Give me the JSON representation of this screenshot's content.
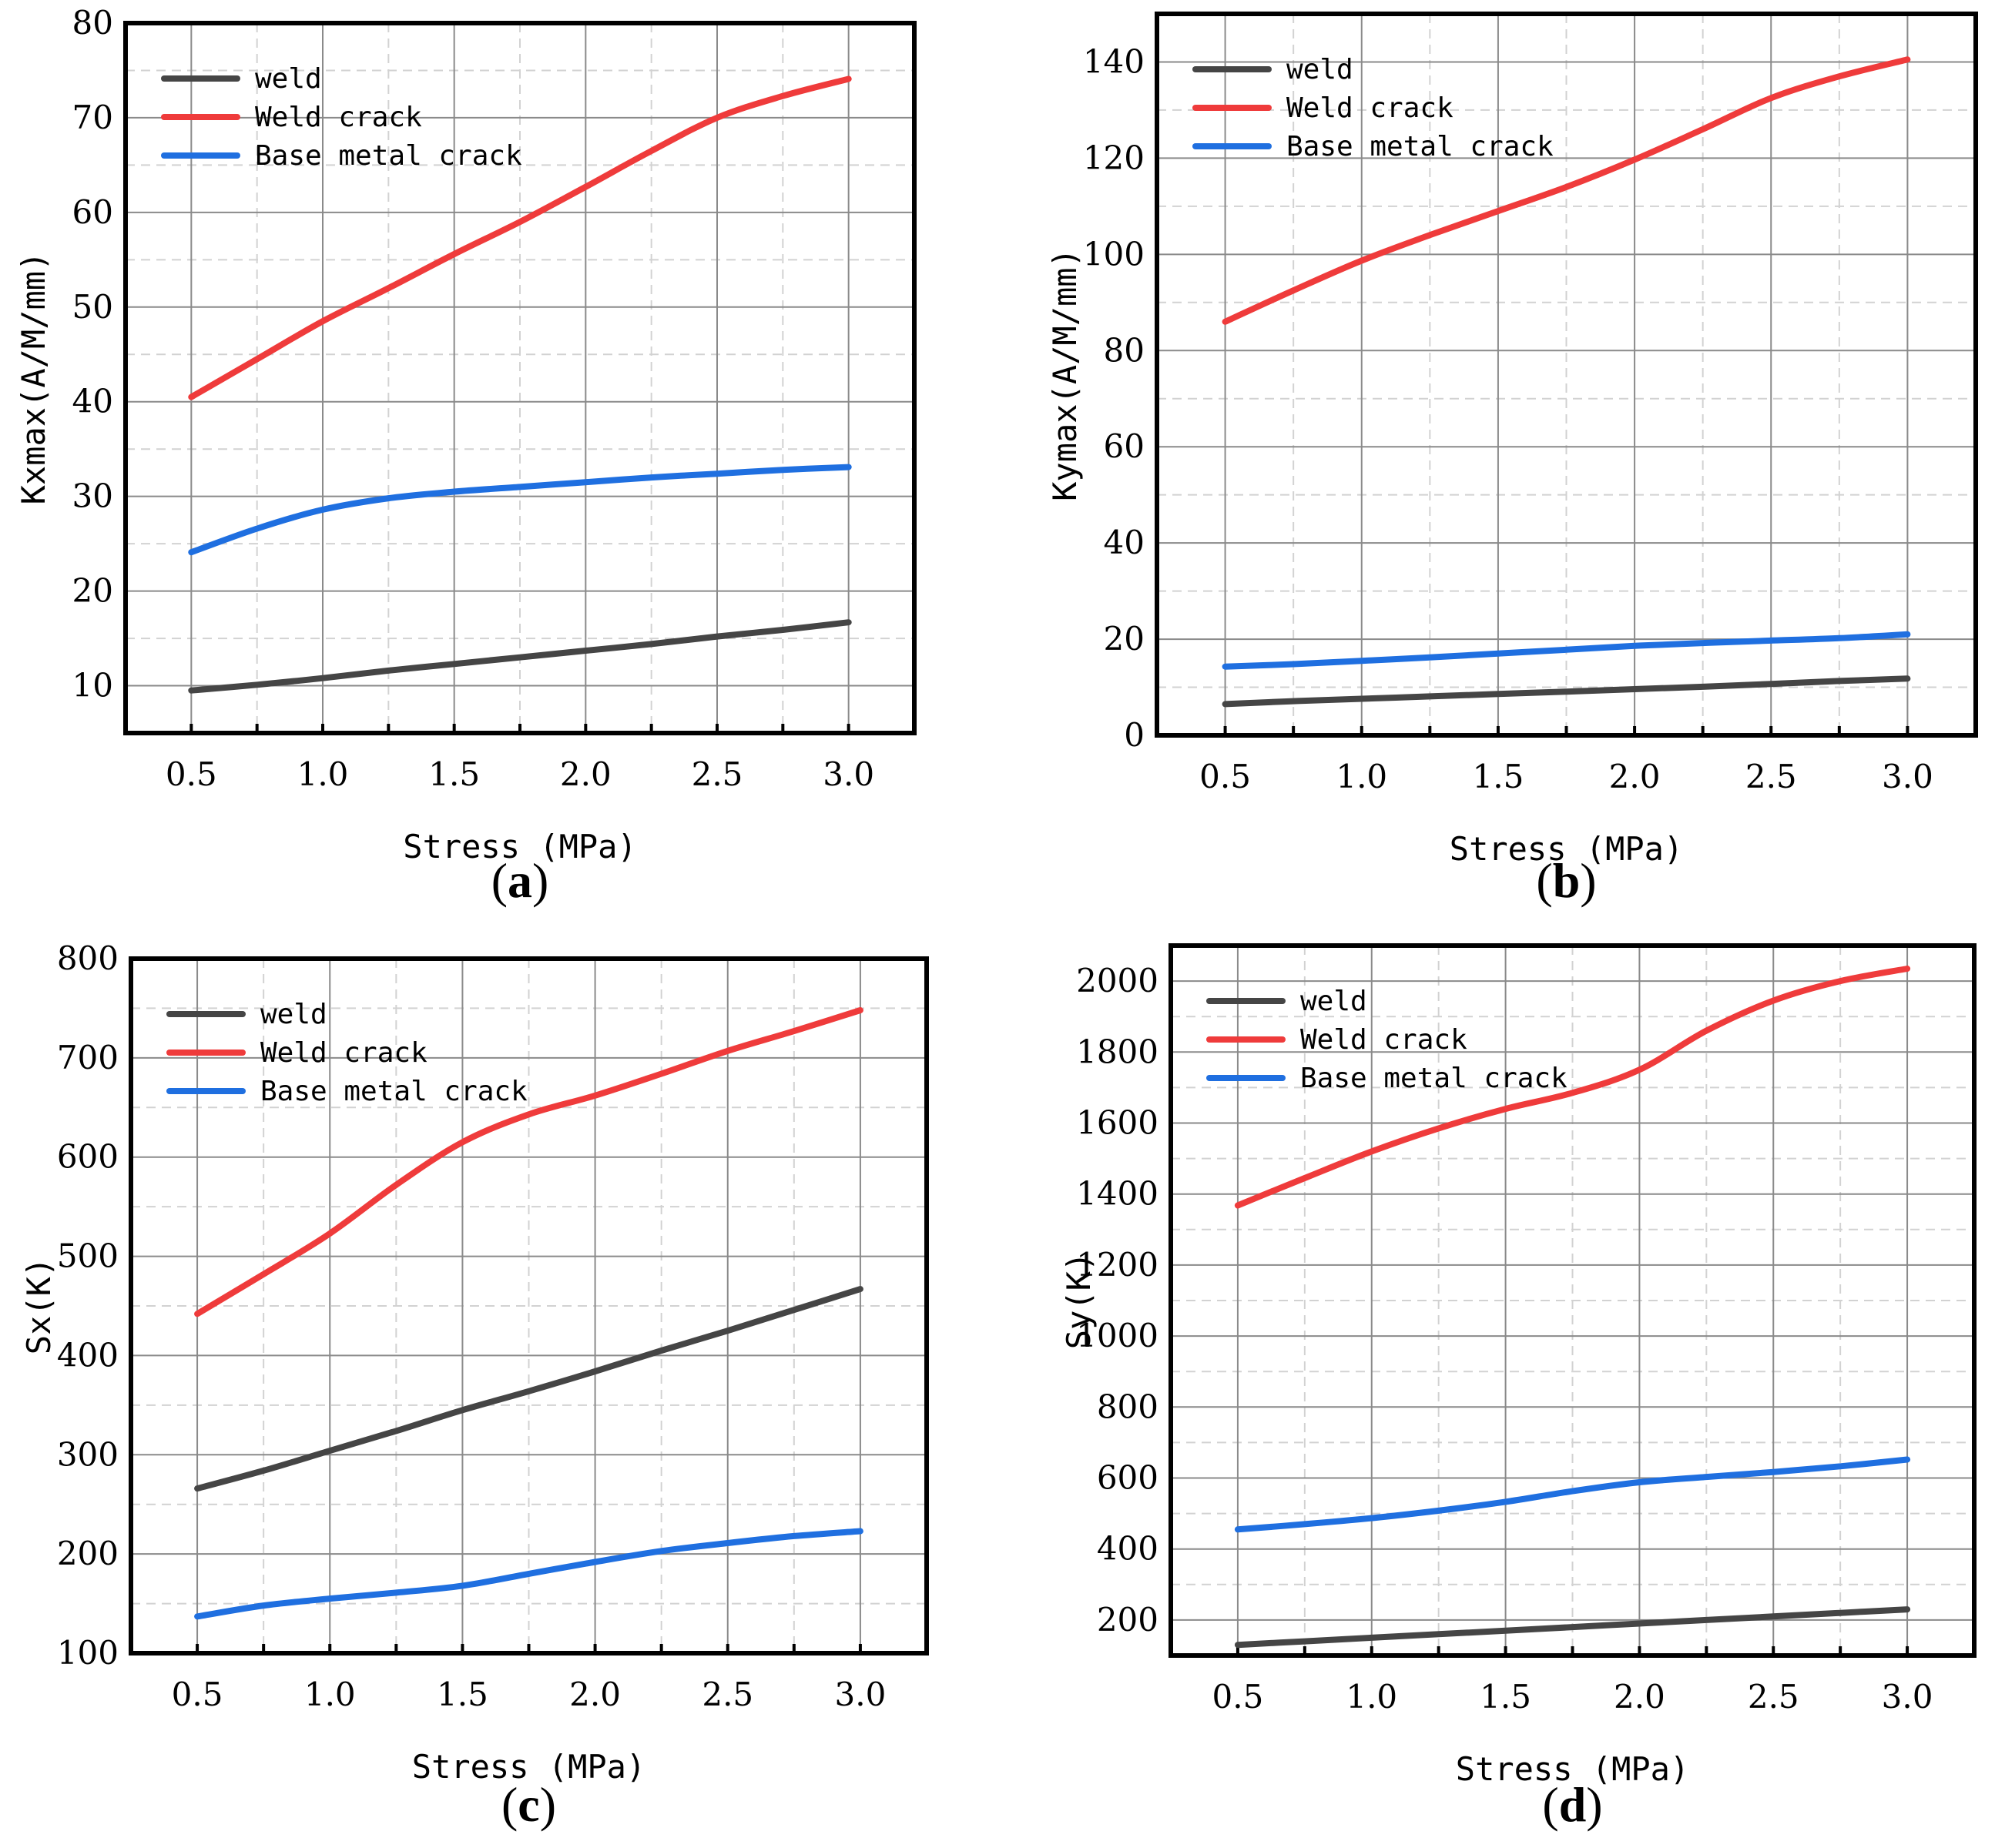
{
  "colors": {
    "weld": "#454545",
    "weld_crack": "#ef3b3b",
    "base_metal_crack": "#1f6fe0"
  },
  "chart_data": [
    {
      "panel": "(a)",
      "panel_letter": "a",
      "type": "line",
      "xlabel": "Stress (MPa)",
      "ylabel": "Kxmax(A/M/mm)",
      "xlim": [
        0.25,
        3.25
      ],
      "ylim": [
        5,
        80
      ],
      "xticks": [
        0.5,
        1.0,
        1.5,
        2.0,
        2.5,
        3.0
      ],
      "xtick_labels": [
        "0.5",
        "1.0",
        "1.5",
        "2.0",
        "2.5",
        "3.0"
      ],
      "yticks": [
        10,
        20,
        30,
        40,
        50,
        60,
        70,
        80
      ],
      "ytick_labels": [
        "10",
        "20",
        "30",
        "40",
        "50",
        "60",
        "70",
        "80"
      ],
      "legend": [
        "weld",
        "Weld crack",
        "Base metal crack"
      ],
      "x": [
        0.5,
        0.75,
        1.0,
        1.25,
        1.5,
        1.75,
        2.0,
        2.25,
        2.5,
        2.75,
        3.0
      ],
      "series": [
        {
          "name": "weld",
          "values": [
            9.5,
            10.1,
            10.8,
            11.6,
            12.3,
            13.0,
            13.7,
            14.4,
            15.2,
            15.9,
            16.7
          ]
        },
        {
          "name": "Weld crack",
          "values": [
            40.5,
            44.5,
            48.5,
            52.0,
            55.6,
            59.0,
            62.7,
            66.5,
            70.0,
            72.3,
            74.1
          ]
        },
        {
          "name": "Base metal crack",
          "values": [
            24.1,
            26.6,
            28.6,
            29.8,
            30.5,
            31.0,
            31.5,
            32.0,
            32.4,
            32.8,
            33.1
          ]
        }
      ]
    },
    {
      "panel": "(b)",
      "panel_letter": "b",
      "type": "line",
      "xlabel": "Stress (MPa)",
      "ylabel": "Kymax(A/M/mm)",
      "xlim": [
        0.25,
        3.25
      ],
      "ylim": [
        0,
        150
      ],
      "xticks": [
        0.5,
        1.0,
        1.5,
        2.0,
        2.5,
        3.0
      ],
      "xtick_labels": [
        "0.5",
        "1.0",
        "1.5",
        "2.0",
        "2.5",
        "3.0"
      ],
      "yticks": [
        0,
        20,
        40,
        60,
        80,
        100,
        120,
        140
      ],
      "ytick_labels": [
        "0",
        "20",
        "40",
        "60",
        "80",
        "100",
        "120",
        "140"
      ],
      "legend": [
        "weld",
        "Weld crack",
        "Base metal crack"
      ],
      "x": [
        0.5,
        0.75,
        1.0,
        1.25,
        1.5,
        1.75,
        2.0,
        2.25,
        2.5,
        2.75,
        3.0
      ],
      "series": [
        {
          "name": "weld",
          "values": [
            6.5,
            7.1,
            7.6,
            8.1,
            8.6,
            9.1,
            9.6,
            10.1,
            10.7,
            11.3,
            11.8
          ]
        },
        {
          "name": "Weld crack",
          "values": [
            86,
            92.5,
            98.7,
            104,
            109,
            114,
            119.7,
            126,
            132.5,
            137,
            140.5
          ]
        },
        {
          "name": "Base metal crack",
          "values": [
            14.3,
            14.8,
            15.5,
            16.2,
            17.0,
            17.8,
            18.6,
            19.2,
            19.7,
            20.2,
            21.0
          ]
        }
      ]
    },
    {
      "panel": "(c)",
      "panel_letter": "c",
      "type": "line",
      "xlabel": "Stress (MPa)",
      "ylabel": "Sx(K)",
      "xlim": [
        0.25,
        3.25
      ],
      "ylim": [
        100,
        800
      ],
      "xticks": [
        0.5,
        1.0,
        1.5,
        2.0,
        2.5,
        3.0
      ],
      "xtick_labels": [
        "0.5",
        "1.0",
        "1.5",
        "2.0",
        "2.5",
        "3.0"
      ],
      "yticks": [
        100,
        200,
        300,
        400,
        500,
        600,
        700,
        800
      ],
      "ytick_labels": [
        "100",
        "200",
        "300",
        "400",
        "500",
        "600",
        "700",
        "800"
      ],
      "legend": [
        "weld",
        "Weld crack",
        "Base metal crack"
      ],
      "x": [
        0.5,
        0.75,
        1.0,
        1.25,
        1.5,
        1.75,
        2.0,
        2.25,
        2.5,
        2.75,
        3.0
      ],
      "series": [
        {
          "name": "weld",
          "values": [
            266,
            284,
            304,
            324,
            345,
            364,
            384,
            405,
            425,
            446,
            467
          ]
        },
        {
          "name": "Weld crack",
          "values": [
            442,
            482,
            523,
            572,
            615,
            643,
            662,
            684,
            707,
            727,
            748
          ]
        },
        {
          "name": "Base metal crack",
          "values": [
            137,
            148,
            155,
            161,
            168,
            180,
            192,
            203,
            211,
            218,
            223
          ]
        }
      ]
    },
    {
      "panel": "(d)",
      "panel_letter": "d",
      "type": "line",
      "xlabel": "Stress (MPa)",
      "ylabel": "Sy(K)",
      "xlim": [
        0.25,
        3.25
      ],
      "ylim": [
        100,
        2100
      ],
      "xticks": [
        0.5,
        1.0,
        1.5,
        2.0,
        2.5,
        3.0
      ],
      "xtick_labels": [
        "0.5",
        "1.0",
        "1.5",
        "2.0",
        "2.5",
        "3.0"
      ],
      "yticks": [
        200,
        400,
        600,
        800,
        1000,
        1200,
        1400,
        1600,
        1800,
        2000
      ],
      "ytick_labels": [
        "200",
        "400",
        "600",
        "800",
        "1000",
        "1200",
        "1400",
        "1600",
        "1800",
        "2000"
      ],
      "legend": [
        "weld",
        "Weld crack",
        "Base metal crack"
      ],
      "x": [
        0.5,
        0.75,
        1.0,
        1.25,
        1.5,
        1.75,
        2.0,
        2.25,
        2.5,
        2.75,
        3.0
      ],
      "series": [
        {
          "name": "weld",
          "values": [
            130,
            140,
            150,
            160,
            170,
            180,
            190,
            200,
            210,
            220,
            230
          ]
        },
        {
          "name": "Weld crack",
          "values": [
            1368,
            1445,
            1520,
            1585,
            1640,
            1685,
            1750,
            1860,
            1945,
            2000,
            2035
          ]
        },
        {
          "name": "Base metal crack",
          "values": [
            455,
            470,
            487,
            508,
            533,
            563,
            588,
            603,
            617,
            633,
            652
          ]
        }
      ]
    }
  ]
}
